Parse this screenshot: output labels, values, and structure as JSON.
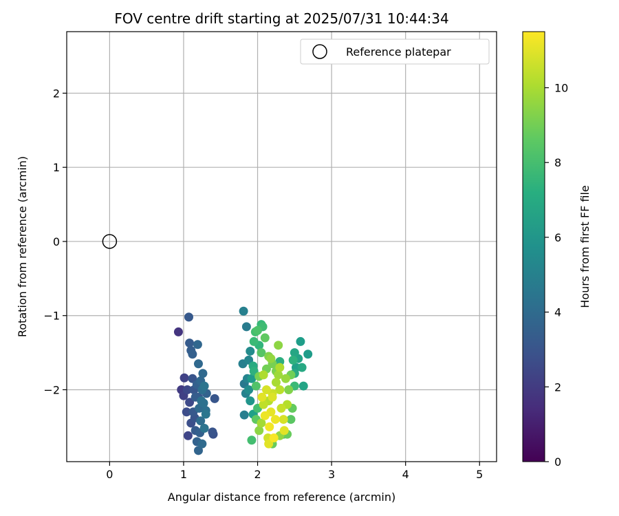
{
  "chart_data": {
    "type": "scatter",
    "title": "FOV centre drift starting at 2025/07/31 10:44:34",
    "xlabel": "Angular distance from reference (arcmin)",
    "ylabel": "Rotation from reference (arcmin)",
    "xlim": [
      -0.58,
      5.23
    ],
    "ylim": [
      -2.97,
      2.83
    ],
    "xticks": [
      0,
      1,
      2,
      3,
      4,
      5
    ],
    "yticks": [
      -2,
      -1,
      0,
      1,
      2
    ],
    "grid": true,
    "legend": {
      "position": "top-right",
      "entries": [
        "Reference platepar"
      ]
    },
    "reference": {
      "x": 0,
      "y": 0,
      "label": "Reference platepar"
    },
    "colorbar": {
      "label": "Hours from first FF file",
      "range": [
        0,
        11.5
      ],
      "ticks": [
        0,
        2,
        4,
        6,
        8,
        10
      ],
      "colormap": "viridis"
    },
    "columns": [
      "x",
      "y",
      "hours"
    ],
    "points": [
      [
        0.93,
        -1.22,
        1.8
      ],
      [
        1.07,
        -1.02,
        3.2
      ],
      [
        0.97,
        -2.0,
        2.0
      ],
      [
        1.01,
        -1.84,
        2.3
      ],
      [
        1.05,
        -2.0,
        2.5
      ],
      [
        1.0,
        -2.08,
        2.2
      ],
      [
        1.04,
        -2.3,
        2.7
      ],
      [
        1.06,
        -2.62,
        2.4
      ],
      [
        1.08,
        -2.17,
        2.6
      ],
      [
        1.1,
        -2.45,
        2.8
      ],
      [
        1.08,
        -1.37,
        3.3
      ],
      [
        1.1,
        -1.47,
        3.4
      ],
      [
        1.12,
        -1.52,
        3.5
      ],
      [
        1.12,
        -1.85,
        3.0
      ],
      [
        1.14,
        -2.0,
        3.1
      ],
      [
        1.13,
        -2.3,
        3.2
      ],
      [
        1.16,
        -2.1,
        3.4
      ],
      [
        1.16,
        -2.55,
        3.3
      ],
      [
        1.18,
        -2.7,
        3.6
      ],
      [
        1.2,
        -2.82,
        3.7
      ],
      [
        1.18,
        -1.93,
        3.5
      ],
      [
        1.19,
        -1.39,
        3.8
      ],
      [
        1.2,
        -1.65,
        3.9
      ],
      [
        1.21,
        -2.25,
        4.0
      ],
      [
        1.23,
        -1.88,
        3.8
      ],
      [
        1.23,
        -2.42,
        4.1
      ],
      [
        1.25,
        -2.0,
        4.2
      ],
      [
        1.25,
        -2.73,
        4.0
      ],
      [
        1.26,
        -1.78,
        3.9
      ],
      [
        1.27,
        -2.18,
        4.3
      ],
      [
        1.28,
        -2.52,
        4.4
      ],
      [
        1.3,
        -2.28,
        4.2
      ],
      [
        1.31,
        -2.05,
        3.6
      ],
      [
        1.2,
        -2.1,
        3.2
      ],
      [
        1.15,
        -2.38,
        3.0
      ],
      [
        1.22,
        -2.58,
        3.5
      ],
      [
        1.28,
        -1.95,
        4.4
      ],
      [
        1.3,
        -2.33,
        4.5
      ],
      [
        1.39,
        -2.57,
        3.0
      ],
      [
        1.42,
        -2.12,
        3.1
      ],
      [
        1.4,
        -2.6,
        2.9
      ],
      [
        1.24,
        -2.15,
        4.3
      ],
      [
        1.81,
        -0.94,
        5.0
      ],
      [
        1.85,
        -1.15,
        4.8
      ],
      [
        1.8,
        -1.65,
        5.0
      ],
      [
        1.82,
        -1.92,
        4.6
      ],
      [
        1.84,
        -2.05,
        5.1
      ],
      [
        1.86,
        -1.85,
        5.2
      ],
      [
        1.82,
        -2.34,
        4.9
      ],
      [
        1.88,
        -1.6,
        5.3
      ],
      [
        1.9,
        -1.48,
        5.5
      ],
      [
        1.88,
        -2.0,
        5.6
      ],
      [
        1.9,
        -2.15,
        6.0
      ],
      [
        1.92,
        -1.85,
        6.2
      ],
      [
        1.94,
        -2.33,
        6.5
      ],
      [
        1.94,
        -1.68,
        7.0
      ],
      [
        1.95,
        -1.75,
        7.3
      ],
      [
        1.95,
        -1.35,
        7.8
      ],
      [
        1.97,
        -1.22,
        8.0
      ],
      [
        2.0,
        -1.2,
        8.2
      ],
      [
        2.02,
        -1.4,
        7.5
      ],
      [
        2.05,
        -1.12,
        7.7
      ],
      [
        2.07,
        -1.15,
        7.9
      ],
      [
        2.05,
        -1.5,
        8.4
      ],
      [
        2.1,
        -1.3,
        8.6
      ],
      [
        2.12,
        -1.72,
        9.0
      ],
      [
        2.15,
        -1.55,
        9.3
      ],
      [
        2.18,
        -1.58,
        9.6
      ],
      [
        2.2,
        -1.65,
        9.1
      ],
      [
        2.28,
        -1.4,
        9.5
      ],
      [
        2.3,
        -1.7,
        10.1
      ],
      [
        1.92,
        -2.68,
        8.0
      ],
      [
        1.98,
        -2.4,
        8.6
      ],
      [
        2.02,
        -2.55,
        9.5
      ],
      [
        2.05,
        -2.45,
        9.9
      ],
      [
        2.08,
        -2.2,
        10.4
      ],
      [
        2.06,
        -2.1,
        11.0
      ],
      [
        2.1,
        -2.35,
        11.2
      ],
      [
        2.12,
        -2.0,
        10.8
      ],
      [
        2.14,
        -2.65,
        10.7
      ],
      [
        2.16,
        -2.5,
        11.3
      ],
      [
        2.18,
        -2.3,
        11.1
      ],
      [
        2.2,
        -2.1,
        10.9
      ],
      [
        2.22,
        -2.65,
        11.4
      ],
      [
        2.24,
        -2.4,
        11.2
      ],
      [
        2.15,
        -2.15,
        10.2
      ],
      [
        2.2,
        -2.05,
        10.6
      ],
      [
        2.25,
        -1.9,
        10.0
      ],
      [
        2.28,
        -1.8,
        9.8
      ],
      [
        2.3,
        -2.0,
        10.3
      ],
      [
        2.32,
        -2.25,
        10.5
      ],
      [
        2.35,
        -2.4,
        10.8
      ],
      [
        2.36,
        -2.55,
        11.0
      ],
      [
        2.4,
        -2.2,
        10.2
      ],
      [
        2.38,
        -1.85,
        9.7
      ],
      [
        2.42,
        -2.0,
        9.3
      ],
      [
        2.4,
        -2.6,
        8.8
      ],
      [
        2.45,
        -2.4,
        8.5
      ],
      [
        2.45,
        -1.8,
        9.0
      ],
      [
        2.47,
        -2.25,
        8.7
      ],
      [
        2.48,
        -1.6,
        7.3
      ],
      [
        2.5,
        -1.95,
        7.8
      ],
      [
        2.5,
        -1.5,
        6.8
      ],
      [
        2.52,
        -1.7,
        6.5
      ],
      [
        2.55,
        -1.58,
        6.6
      ],
      [
        2.58,
        -1.35,
        6.4
      ],
      [
        2.6,
        -1.7,
        6.9
      ],
      [
        2.62,
        -1.95,
        6.7
      ],
      [
        2.68,
        -1.52,
        6.3
      ],
      [
        2.5,
        -1.78,
        7.0
      ],
      [
        2.3,
        -1.62,
        7.2
      ],
      [
        2.35,
        -2.6,
        8.2
      ],
      [
        2.15,
        -2.73,
        11.0
      ],
      [
        2.2,
        -2.73,
        8.8
      ],
      [
        2.3,
        -2.62,
        9.6
      ],
      [
        2.25,
        -1.75,
        9.2
      ],
      [
        2.0,
        -2.25,
        8.0
      ],
      [
        1.98,
        -1.95,
        8.3
      ],
      [
        2.02,
        -1.82,
        9.1
      ],
      [
        2.08,
        -1.8,
        10.1
      ]
    ]
  }
}
